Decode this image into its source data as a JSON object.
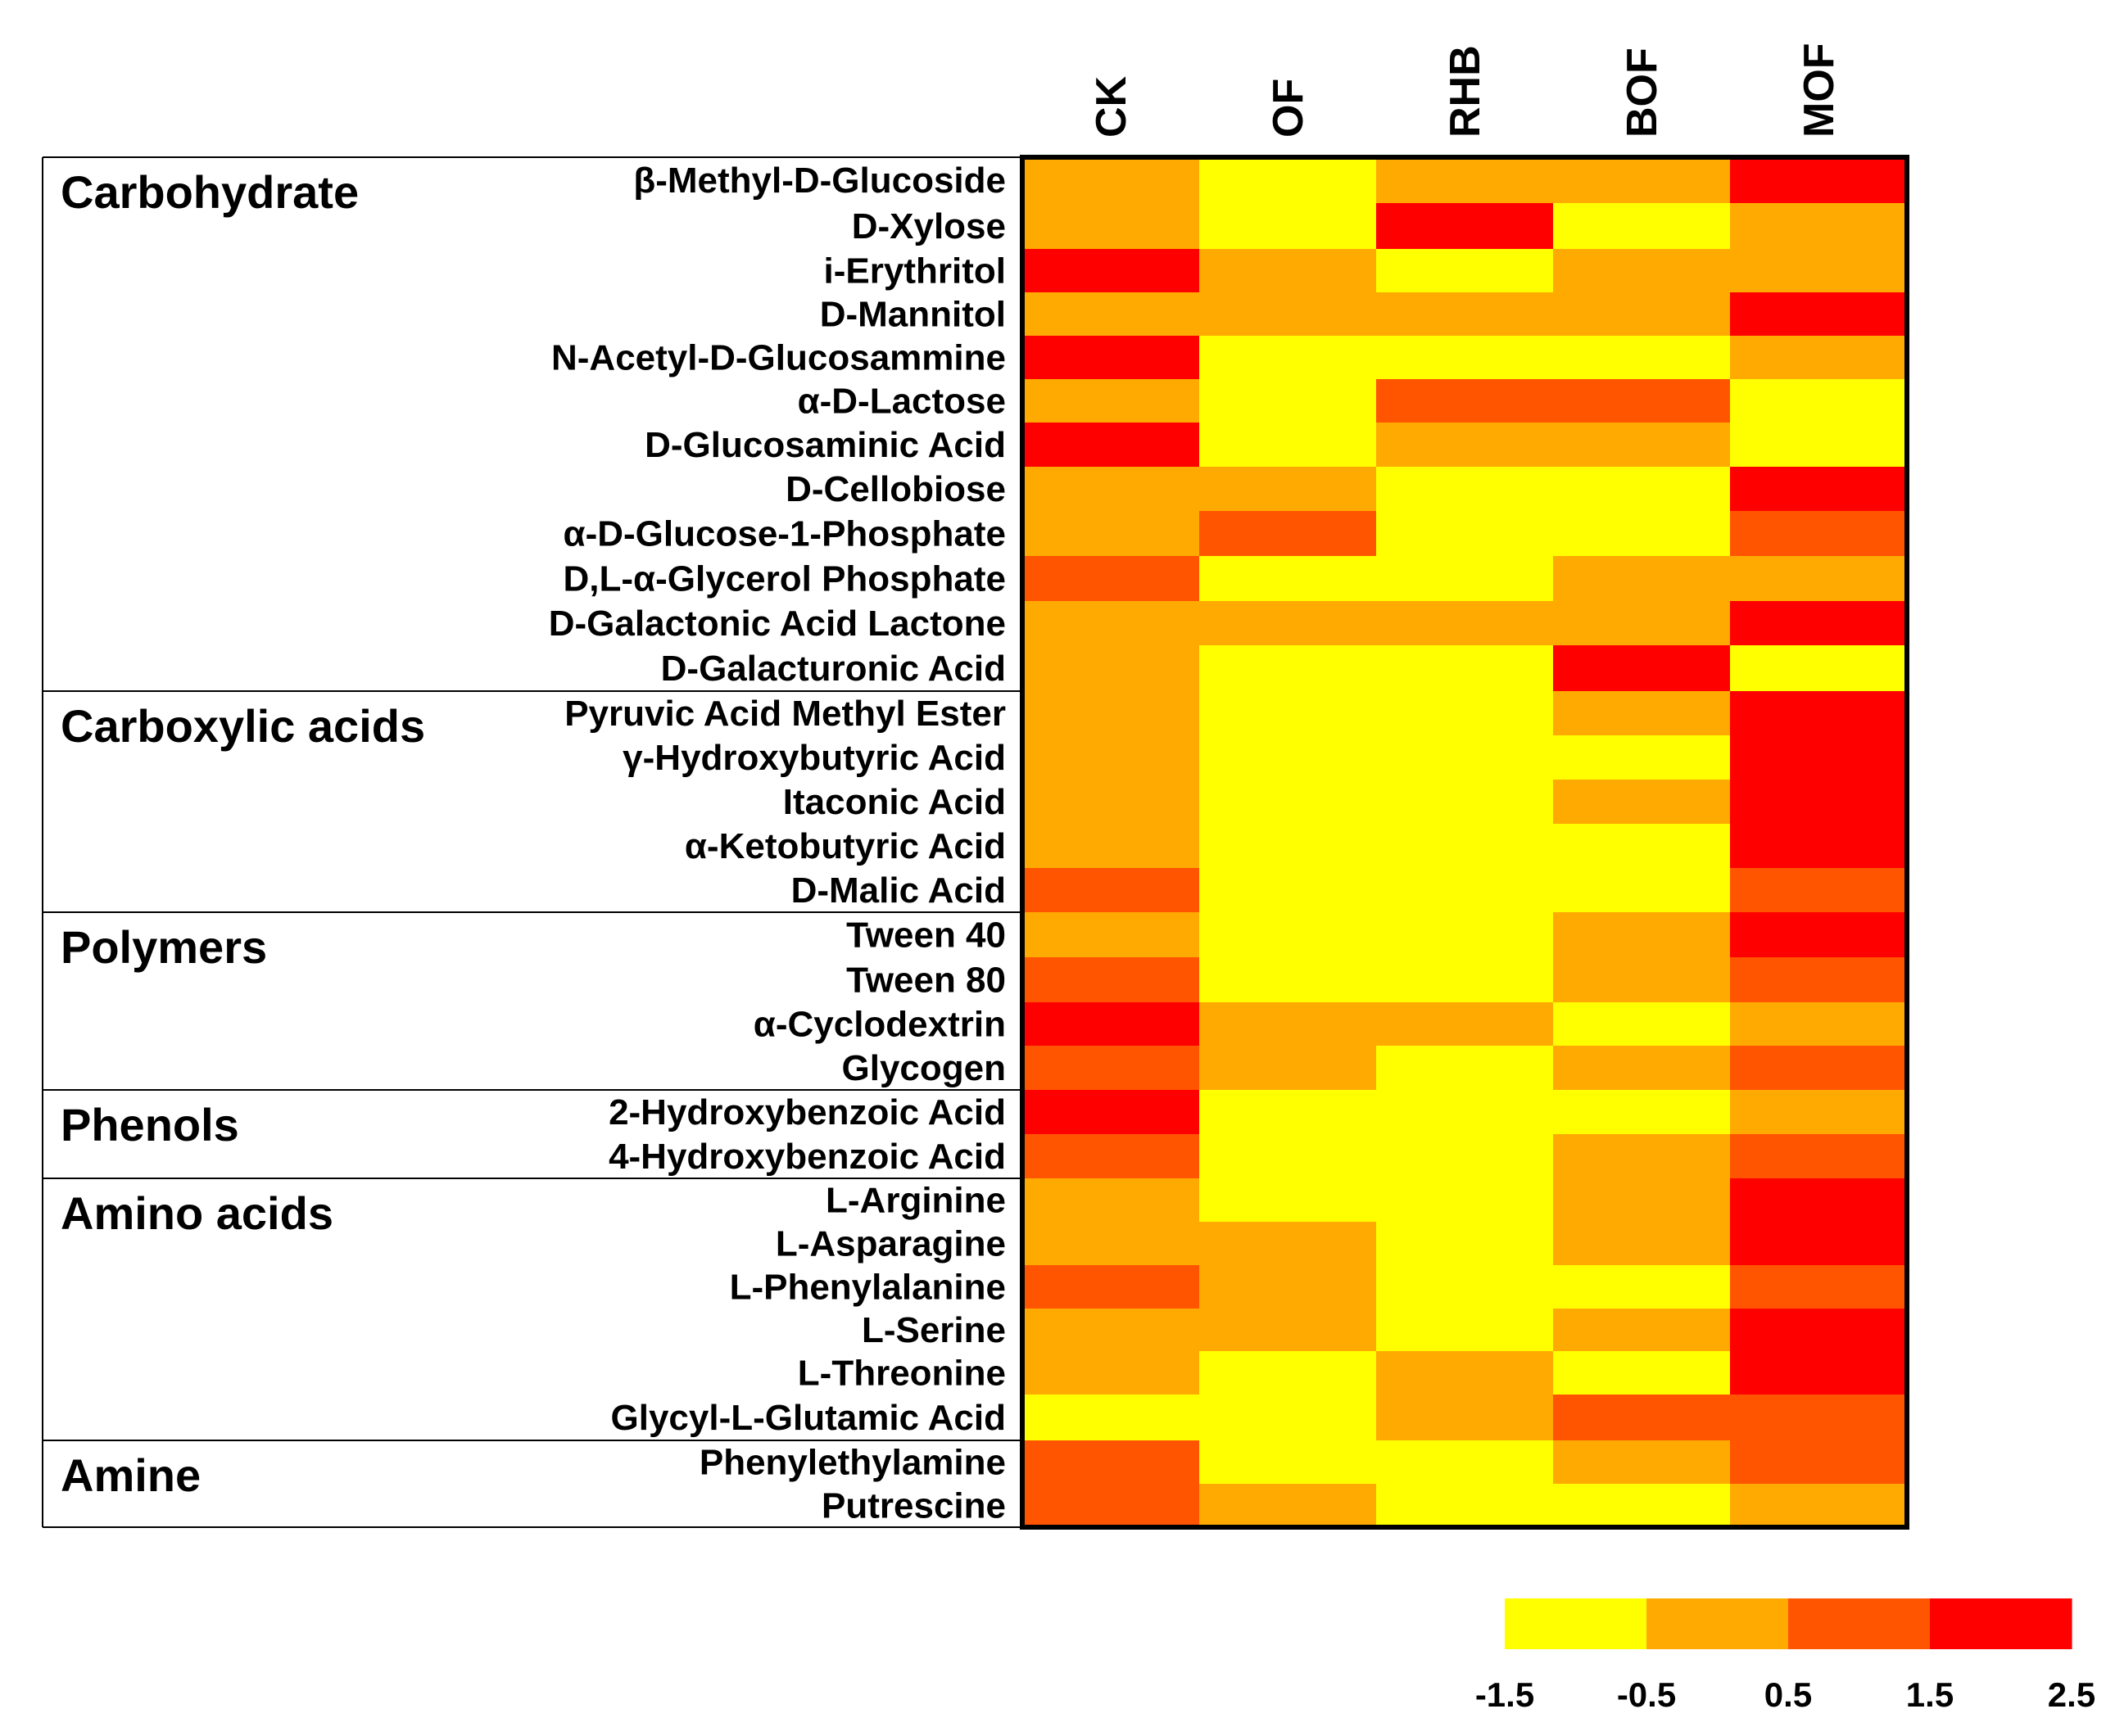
{
  "chart_data": {
    "type": "heatmap",
    "columns": [
      "CK",
      "OF",
      "RHB",
      "BOF",
      "MOF"
    ],
    "groups": [
      {
        "name": "Carbohydrate",
        "rows": [
          {
            "label": "β-Methyl-D-Glucoside",
            "values": [
              0,
              -1,
              0,
              0,
              2
            ]
          },
          {
            "label": "D-Xylose",
            "values": [
              0,
              -1,
              2,
              -1,
              0
            ]
          },
          {
            "label": "i-Erythritol",
            "values": [
              2,
              0,
              -1,
              0,
              0
            ]
          },
          {
            "label": "D-Mannitol",
            "values": [
              0,
              0,
              0,
              0,
              2
            ]
          },
          {
            "label": "N-Acetyl-D-Glucosammine",
            "values": [
              2,
              -1,
              -1,
              -1,
              0
            ]
          },
          {
            "label": "α-D-Lactose",
            "values": [
              0,
              -1,
              1,
              1,
              -1
            ]
          },
          {
            "label": "D-Glucosaminic Acid",
            "values": [
              2,
              -1,
              0,
              0,
              -1
            ]
          },
          {
            "label": "D-Cellobiose",
            "values": [
              0,
              0,
              -1,
              -1,
              2
            ]
          },
          {
            "label": "α-D-Glucose-1-Phosphate",
            "values": [
              0,
              1,
              -1,
              -1,
              1
            ]
          },
          {
            "label": "D,L-α-Glycerol Phosphate",
            "values": [
              1,
              -1,
              -1,
              0,
              0
            ]
          },
          {
            "label": "D-Galactonic Acid Lactone",
            "values": [
              0,
              0,
              0,
              0,
              2
            ]
          },
          {
            "label": "D-Galacturonic Acid",
            "values": [
              0,
              -1,
              -1,
              2,
              -1
            ]
          }
        ]
      },
      {
        "name": "Carboxylic acids",
        "rows": [
          {
            "label": "Pyruvic Acid Methyl Ester",
            "values": [
              0,
              -1,
              -1,
              0,
              2
            ]
          },
          {
            "label": "γ-Hydroxybutyric Acid",
            "values": [
              0,
              -1,
              -1,
              -1,
              2
            ]
          },
          {
            "label": "Itaconic Acid",
            "values": [
              0,
              -1,
              -1,
              0,
              2
            ]
          },
          {
            "label": "α-Ketobutyric Acid",
            "values": [
              0,
              -1,
              -1,
              -1,
              2
            ]
          },
          {
            "label": "D-Malic Acid",
            "values": [
              1,
              -1,
              -1,
              -1,
              1
            ]
          }
        ]
      },
      {
        "name": "Polymers",
        "rows": [
          {
            "label": "Tween 40",
            "values": [
              0,
              -1,
              -1,
              0,
              2
            ]
          },
          {
            "label": "Tween 80",
            "values": [
              1,
              -1,
              -1,
              0,
              1
            ]
          },
          {
            "label": "α-Cyclodextrin",
            "values": [
              2,
              0,
              0,
              -1,
              0
            ]
          },
          {
            "label": "Glycogen",
            "values": [
              1,
              0,
              -1,
              0,
              1
            ]
          }
        ]
      },
      {
        "name": "Phenols",
        "rows": [
          {
            "label": "2-Hydroxybenzoic Acid",
            "values": [
              2,
              -1,
              -1,
              -1,
              0
            ]
          },
          {
            "label": "4-Hydroxybenzoic Acid",
            "values": [
              1,
              -1,
              -1,
              0,
              1
            ]
          }
        ]
      },
      {
        "name": "Amino acids",
        "rows": [
          {
            "label": "L-Arginine",
            "values": [
              0,
              -1,
              -1,
              0,
              2
            ]
          },
          {
            "label": "L-Asparagine",
            "values": [
              0,
              0,
              -1,
              0,
              2
            ]
          },
          {
            "label": "L-Phenylalanine",
            "values": [
              1,
              0,
              -1,
              -1,
              1
            ]
          },
          {
            "label": "L-Serine",
            "values": [
              0,
              0,
              -1,
              0,
              2
            ]
          },
          {
            "label": "L-Threonine",
            "values": [
              0,
              -1,
              0,
              -1,
              2
            ]
          },
          {
            "label": "Glycyl-L-Glutamic Acid",
            "values": [
              -1,
              -1,
              0,
              1,
              1
            ]
          }
        ]
      },
      {
        "name": "Amine",
        "rows": [
          {
            "label": "Phenylethylamine",
            "values": [
              1,
              -1,
              -1,
              0,
              1
            ]
          },
          {
            "label": "Putrescine",
            "values": [
              1,
              0,
              -1,
              -1,
              0
            ]
          }
        ]
      }
    ],
    "colorbar": {
      "ticks": [
        "-1.5",
        "-0.5",
        "0.5",
        "1.5",
        "2.5"
      ],
      "bins": [
        [
          -1.5,
          -0.5
        ],
        [
          -0.5,
          0.5
        ],
        [
          0.5,
          1.5
        ],
        [
          1.5,
          2.5
        ]
      ],
      "colors": [
        "#ffff00",
        "#ffaa00",
        "#ff5500",
        "#ff0000"
      ]
    }
  }
}
